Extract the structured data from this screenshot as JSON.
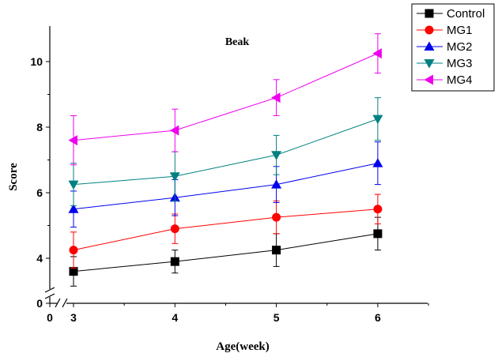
{
  "chart_data": {
    "type": "line",
    "title": "Beak",
    "xlabel": "Age(week)",
    "ylabel": "Score",
    "x": [
      3,
      4,
      5,
      6
    ],
    "x_ticks": [
      "0",
      "3",
      "4",
      "5",
      "6"
    ],
    "y_ticks": [
      "0",
      "4",
      "6",
      "8",
      "10"
    ],
    "ylim": [
      3,
      11
    ],
    "axis_break": true,
    "legend_position": "top-right",
    "series": [
      {
        "name": "Control",
        "color": "#000000",
        "marker": "square",
        "values": [
          3.6,
          3.9,
          4.25,
          4.75
        ],
        "err": [
          0.45,
          0.35,
          0.5,
          0.5
        ]
      },
      {
        "name": "MG1",
        "color": "#ff0000",
        "marker": "circle",
        "values": [
          4.25,
          4.9,
          5.25,
          5.5
        ],
        "err": [
          0.55,
          0.45,
          0.5,
          0.45
        ]
      },
      {
        "name": "MG2",
        "color": "#0000ee",
        "marker": "triangle-up",
        "values": [
          5.5,
          5.85,
          6.25,
          6.9
        ],
        "err": [
          0.55,
          0.55,
          0.55,
          0.65
        ]
      },
      {
        "name": "MG3",
        "color": "#008080",
        "marker": "triangle-down",
        "values": [
          6.25,
          6.5,
          7.15,
          8.25
        ],
        "err": [
          0.65,
          0.75,
          0.6,
          0.65
        ]
      },
      {
        "name": "MG4",
        "color": "#ee00ee",
        "marker": "triangle-left",
        "values": [
          7.6,
          7.9,
          8.9,
          10.25
        ],
        "err": [
          0.75,
          0.65,
          0.55,
          0.6
        ]
      }
    ]
  }
}
